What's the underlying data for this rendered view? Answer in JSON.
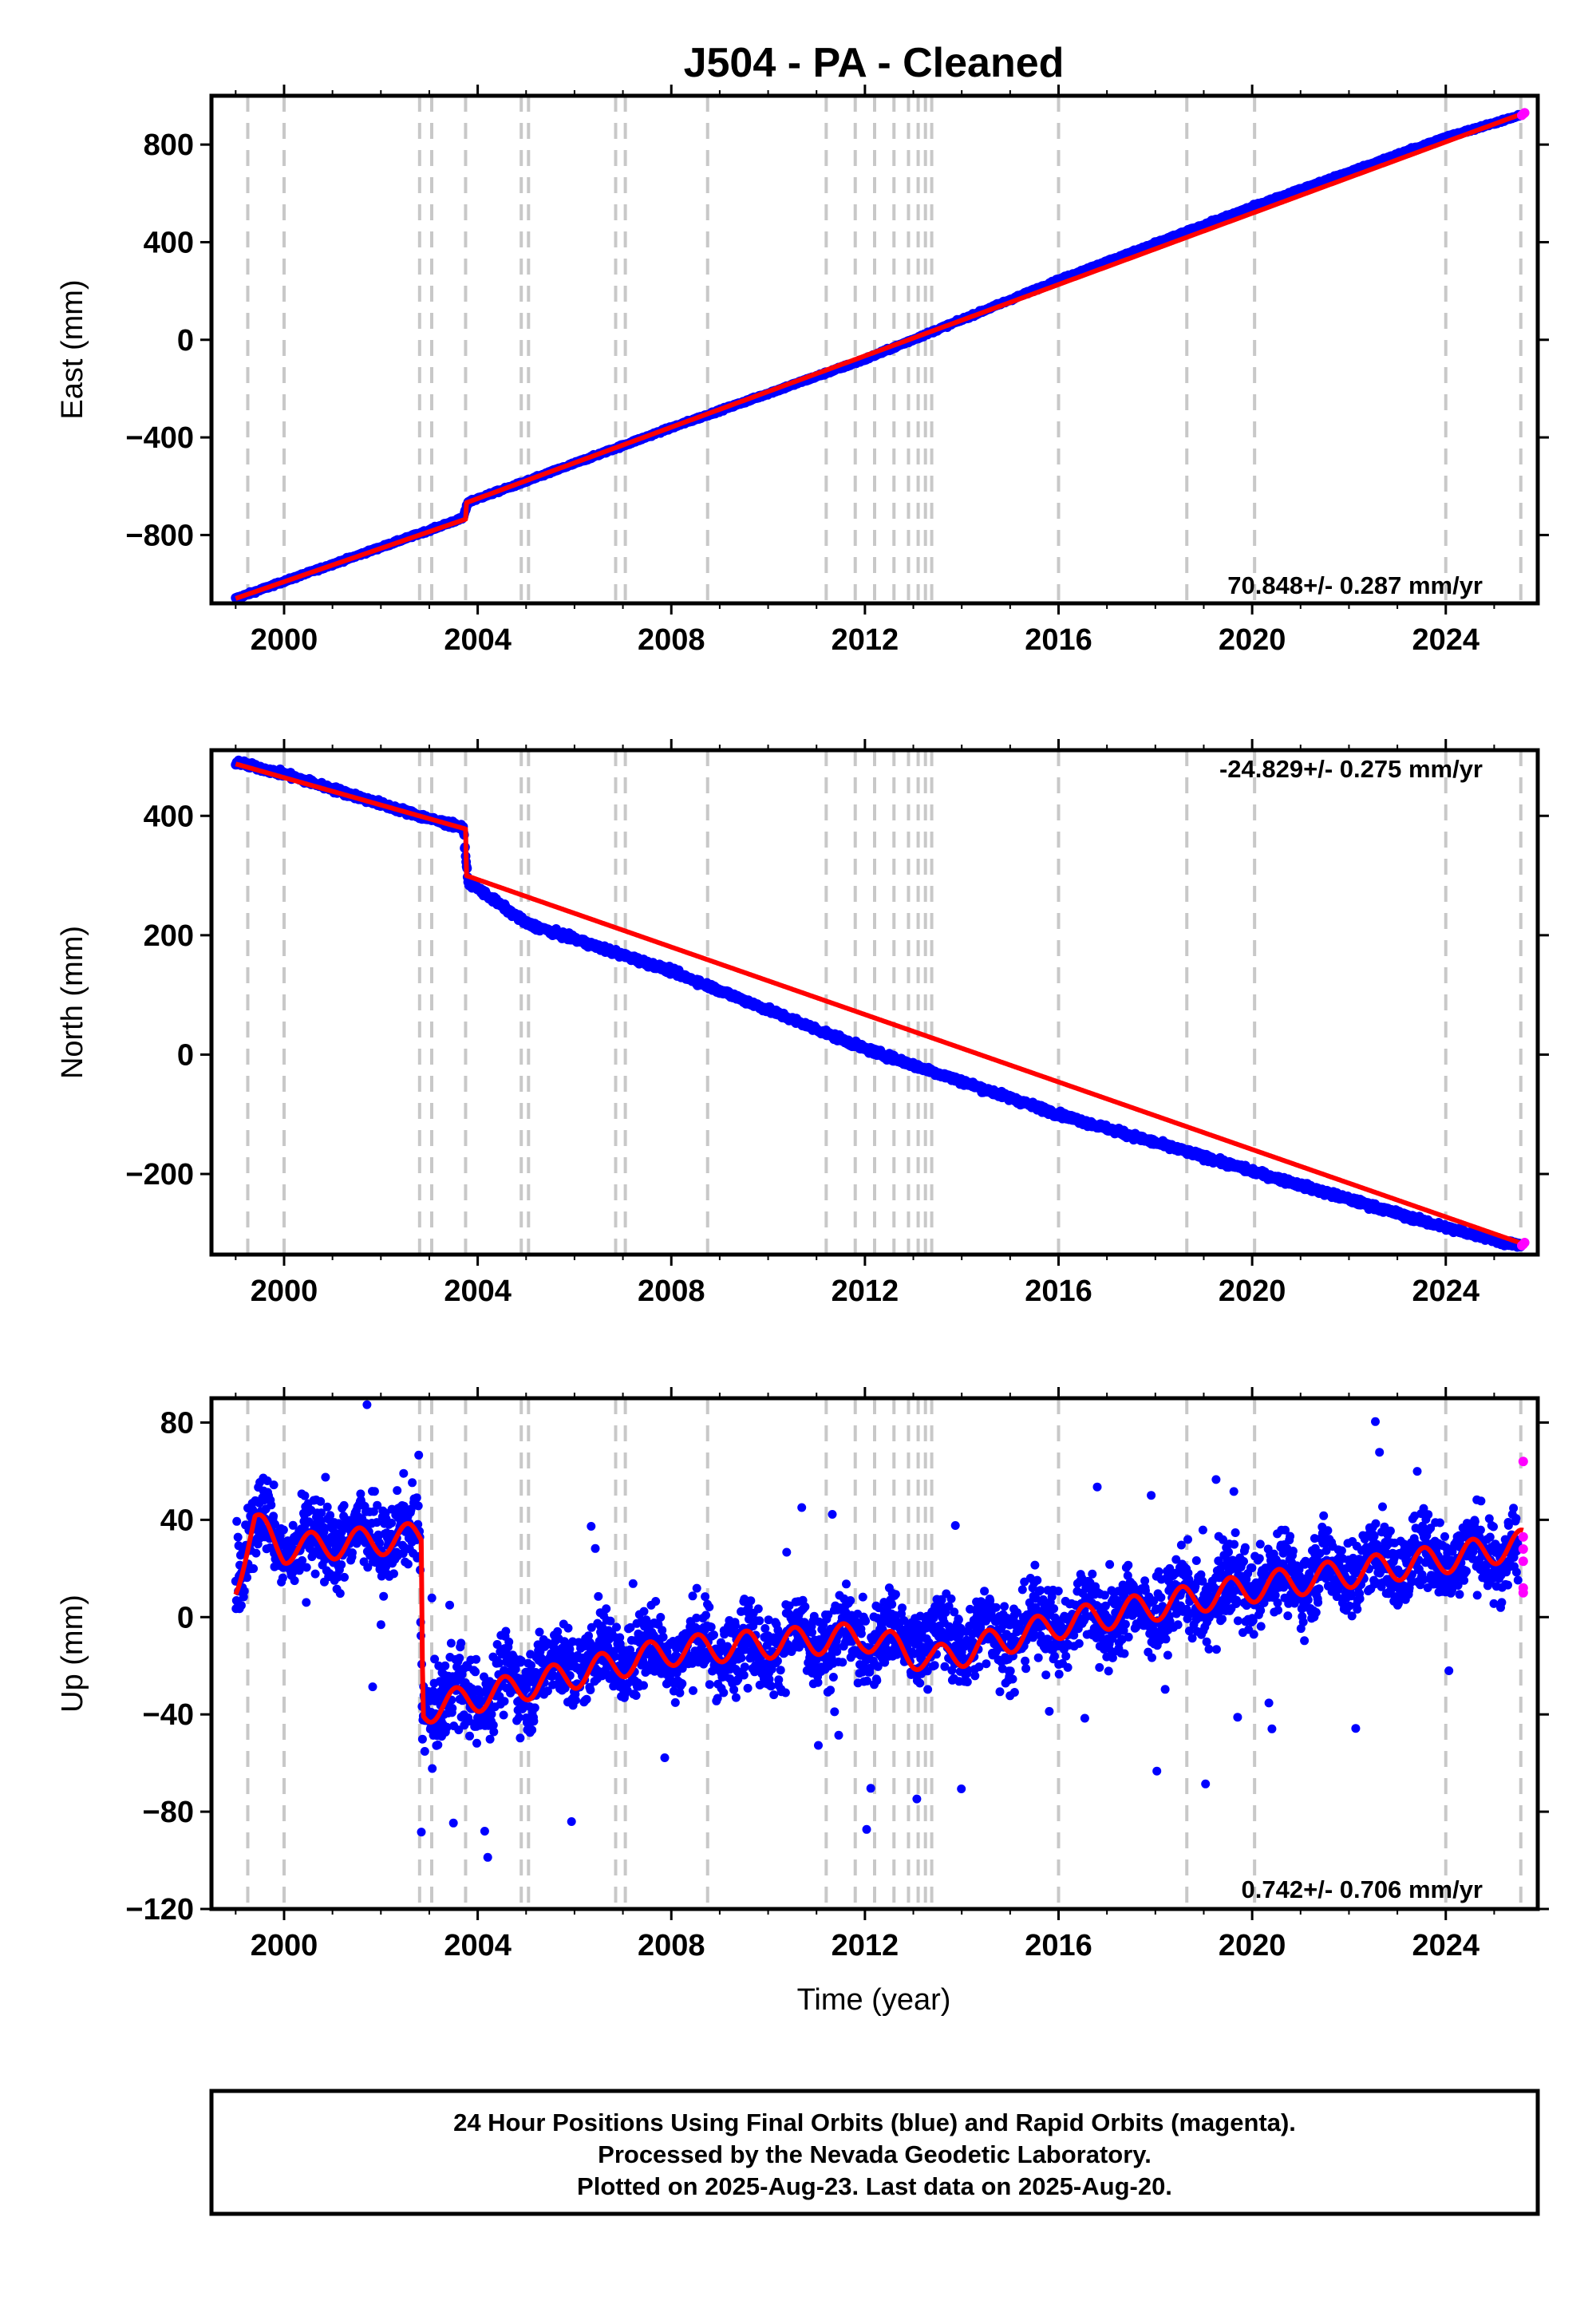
{
  "title": "J504  - PA - Cleaned",
  "xlabel": "Time (year)",
  "x_ticks": [
    2000,
    2004,
    2008,
    2012,
    2016,
    2020,
    2024
  ],
  "xlim": [
    1998.5,
    2025.9
  ],
  "event_lines": [
    1999.25,
    2000.0,
    2002.8,
    2003.05,
    2003.75,
    2004.9,
    2005.05,
    2006.85,
    2007.05,
    2008.75,
    2011.2,
    2011.8,
    2012.2,
    2012.6,
    2012.9,
    2013.1,
    2013.25,
    2013.38,
    2016.0,
    2018.65,
    2020.05,
    2024.0,
    2025.55
  ],
  "colors": {
    "final_orbits": "#0000ff",
    "rapid_orbits": "#ff00ff",
    "model_fit": "#ff0000",
    "event_lines": "#c8c8c8",
    "frame": "#000000"
  },
  "chart_data": [
    {
      "type": "scatter",
      "component": "East",
      "ylabel": "East (mm)",
      "ylim": [
        -1080,
        1000
      ],
      "y_ticks": [
        -800,
        -400,
        0,
        400,
        800
      ],
      "rate_text": "70.848+/- 0.287 mm/yr",
      "series": [
        {
          "name": "Final Orbits (blue)",
          "x": [
            1999.0,
            2000.0,
            2001.0,
            2002.0,
            2003.0,
            2003.7,
            2003.8,
            2005.0,
            2008.0,
            2012.0,
            2016.0,
            2020.0,
            2024.0,
            2025.55
          ],
          "y": [
            -1060,
            -990,
            -920,
            -850,
            -780,
            -730,
            -665,
            -580,
            -360,
            -80,
            245,
            545,
            830,
            920
          ]
        },
        {
          "name": "Rapid Orbits (magenta)",
          "x": [
            2025.57,
            2025.6,
            2025.63
          ],
          "y": [
            920,
            925,
            930
          ]
        },
        {
          "name": "Model Fit",
          "x": [
            1999.0,
            2003.75,
            2003.76,
            2025.63
          ],
          "y": [
            -1060,
            -735,
            -668,
            930
          ]
        }
      ]
    },
    {
      "type": "scatter",
      "component": "North",
      "ylabel": "North (mm)",
      "ylim": [
        -335,
        510
      ],
      "y_ticks": [
        -200,
        0,
        200,
        400
      ],
      "rate_text": "-24.829+/- 0.275 mm/yr",
      "series": [
        {
          "name": "Final Orbits (blue)",
          "x": [
            1999.0,
            2000.0,
            2001.0,
            2002.0,
            2003.0,
            2003.7,
            2003.8,
            2005.0,
            2008.0,
            2012.0,
            2016.0,
            2020.0,
            2024.0,
            2025.55
          ],
          "y": [
            490,
            470,
            445,
            420,
            395,
            380,
            290,
            220,
            140,
            10,
            -100,
            -195,
            -290,
            -320
          ]
        },
        {
          "name": "Rapid Orbits (magenta)",
          "x": [
            2025.57,
            2025.6,
            2025.63
          ],
          "y": [
            -320,
            -318,
            -315
          ]
        },
        {
          "name": "Model Fit",
          "x": [
            1999.0,
            2003.75,
            2003.76,
            2025.63
          ],
          "y": [
            487,
            378,
            300,
            -318
          ]
        }
      ]
    },
    {
      "type": "scatter",
      "component": "Up",
      "ylabel": "Up (mm)",
      "ylim": [
        -120,
        90
      ],
      "y_ticks": [
        -120,
        -80,
        -40,
        0,
        40,
        80
      ],
      "rate_text": "0.742+/- 0.706 mm/yr",
      "series": [
        {
          "name": "Final Orbits (blue)",
          "x": [
            1999.0,
            1999.5,
            2000.0,
            2001.0,
            2002.0,
            2002.8,
            2002.85,
            2004.0,
            2006.0,
            2008.0,
            2010.0,
            2012.0,
            2014.0,
            2016.0,
            2018.0,
            2020.0,
            2022.0,
            2024.0,
            2025.5
          ],
          "y": [
            15,
            40,
            30,
            33,
            33,
            33,
            -35,
            -32,
            -18,
            -14,
            -11,
            -9,
            -9,
            -2,
            3,
            14,
            20,
            25,
            27
          ]
        },
        {
          "name": "Rapid Orbits (magenta)",
          "x": [
            2025.6,
            2025.6,
            2025.6,
            2025.6,
            2025.6,
            2025.6
          ],
          "y": [
            64,
            33,
            28,
            23,
            12,
            10
          ]
        },
        {
          "name": "Model Fit",
          "x": [
            1999.0,
            1999.4,
            2000.0,
            2002.85,
            2002.86,
            2004.0,
            2008.0,
            2012.0,
            2013.4,
            2016.0,
            2020.0,
            2024.0,
            2025.6
          ],
          "y": [
            15,
            38,
            28,
            33,
            -38,
            -33,
            -14,
            -8,
            -18,
            -3,
            12,
            24,
            30
          ]
        }
      ]
    }
  ],
  "footer": {
    "line1": "24 Hour Positions Using Final Orbits (blue) and Rapid Orbits (magenta).",
    "line2": "Processed by the Nevada Geodetic Laboratory.",
    "line3": "Plotted on 2025-Aug-23. Last data on 2025-Aug-20."
  }
}
